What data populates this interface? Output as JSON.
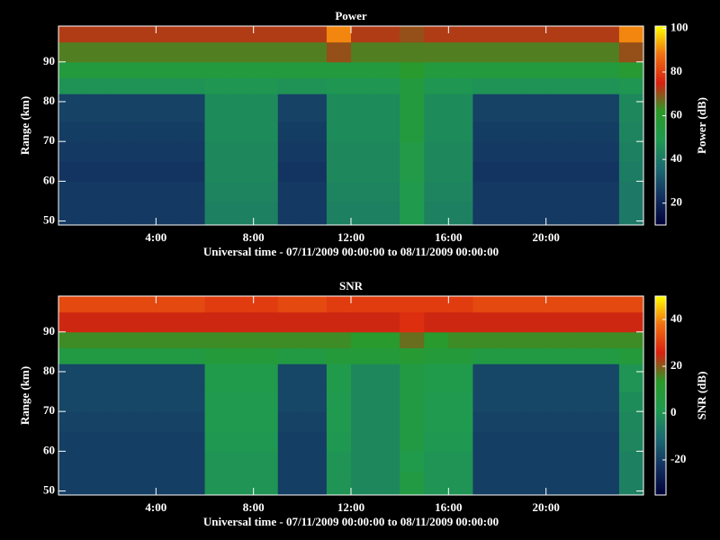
{
  "chart_data": [
    {
      "type": "heatmap",
      "title": "Power",
      "xlabel": "Universal time - 07/11/2009 00:00:00 to 08/11/2009 00:00:00",
      "ylabel": "Range (km)",
      "colorbar_label": "Power (dB)",
      "x_bins": [
        0,
        1,
        2,
        3,
        4,
        5,
        6,
        7,
        8,
        9,
        10,
        11,
        12,
        13,
        14,
        15,
        16,
        17,
        18,
        19,
        20,
        21,
        22,
        23,
        24
      ],
      "y_bins": [
        49,
        55,
        60,
        65,
        70,
        75,
        82,
        86,
        90,
        95,
        99
      ],
      "values": [
        [
          25,
          25,
          25,
          25,
          25,
          25,
          42,
          42,
          42,
          25,
          25,
          42,
          42,
          42,
          50,
          42,
          42,
          25,
          25,
          25,
          25,
          25,
          25,
          40
        ],
        [
          25,
          25,
          25,
          25,
          25,
          25,
          43,
          43,
          43,
          25,
          25,
          43,
          43,
          43,
          50,
          43,
          43,
          25,
          25,
          25,
          25,
          25,
          25,
          40
        ],
        [
          24,
          24,
          24,
          24,
          24,
          24,
          44,
          44,
          44,
          24,
          24,
          44,
          44,
          44,
          52,
          44,
          44,
          24,
          24,
          24,
          24,
          24,
          24,
          41
        ],
        [
          25,
          25,
          25,
          25,
          25,
          25,
          44,
          44,
          44,
          25,
          25,
          44,
          44,
          44,
          52,
          44,
          44,
          25,
          25,
          25,
          25,
          25,
          25,
          42
        ],
        [
          26,
          26,
          26,
          26,
          26,
          26,
          45,
          45,
          45,
          26,
          26,
          45,
          45,
          45,
          55,
          45,
          45,
          26,
          26,
          26,
          26,
          26,
          26,
          43
        ],
        [
          27,
          27,
          27,
          27,
          27,
          27,
          45,
          45,
          45,
          27,
          27,
          45,
          45,
          45,
          55,
          45,
          45,
          27,
          27,
          27,
          27,
          27,
          27,
          44
        ],
        [
          47,
          47,
          47,
          47,
          47,
          47,
          48,
          48,
          48,
          47,
          47,
          48,
          48,
          48,
          55,
          48,
          48,
          47,
          47,
          47,
          47,
          47,
          47,
          48
        ],
        [
          55,
          55,
          55,
          55,
          55,
          55,
          55,
          55,
          55,
          55,
          55,
          55,
          55,
          55,
          60,
          55,
          55,
          55,
          55,
          55,
          55,
          55,
          55,
          58
        ],
        [
          65,
          65,
          65,
          65,
          65,
          65,
          65,
          65,
          65,
          65,
          65,
          70,
          65,
          65,
          65,
          65,
          65,
          65,
          65,
          65,
          65,
          65,
          65,
          70
        ],
        [
          72,
          72,
          72,
          72,
          72,
          72,
          72,
          72,
          72,
          72,
          72,
          90,
          72,
          72,
          70,
          72,
          72,
          72,
          72,
          72,
          72,
          72,
          72,
          90
        ]
      ],
      "xlim": [
        0,
        24
      ],
      "ylim": [
        49,
        99
      ],
      "xticks": [
        {
          "value": 4,
          "label": "4:00"
        },
        {
          "value": 8,
          "label": "8:00"
        },
        {
          "value": 12,
          "label": "12:00"
        },
        {
          "value": 16,
          "label": "16:00"
        },
        {
          "value": 20,
          "label": "20:00"
        }
      ],
      "yticks": [
        50,
        60,
        70,
        80,
        90
      ],
      "zlim": [
        10,
        101
      ],
      "zticks": [
        20,
        40,
        60,
        80,
        100
      ],
      "colormap": [
        "#000038",
        "#123060",
        "#1c6a70",
        "#1f9a50",
        "#2a9a28",
        "#d82010",
        "#f07010",
        "#ffff00"
      ]
    },
    {
      "type": "heatmap",
      "title": "SNR",
      "xlabel": "Universal time - 07/11/2009 00:00:00 to 08/11/2009 00:00:00",
      "ylabel": "Range (km)",
      "colorbar_label": "SNR (dB)",
      "x_bins": [
        0,
        1,
        2,
        3,
        4,
        5,
        6,
        7,
        8,
        9,
        10,
        11,
        12,
        13,
        14,
        15,
        16,
        17,
        18,
        19,
        20,
        21,
        22,
        23,
        24
      ],
      "y_bins": [
        49,
        55,
        60,
        65,
        70,
        75,
        82,
        86,
        90,
        95,
        99
      ],
      "values": [
        [
          -20,
          -20,
          -20,
          -20,
          -20,
          -20,
          0,
          0,
          0,
          -20,
          -20,
          0,
          -3,
          -3,
          5,
          0,
          0,
          -20,
          -20,
          -20,
          -20,
          -20,
          -20,
          -5
        ],
        [
          -20,
          -20,
          -20,
          -20,
          -20,
          -20,
          0,
          0,
          0,
          -20,
          -20,
          0,
          -3,
          -3,
          3,
          0,
          0,
          -20,
          -20,
          -20,
          -20,
          -20,
          -20,
          -5
        ],
        [
          -20,
          -20,
          -20,
          -20,
          -20,
          -20,
          1,
          1,
          1,
          -20,
          -20,
          1,
          -3,
          -3,
          5,
          1,
          1,
          -20,
          -20,
          -20,
          -20,
          -20,
          -20,
          -4
        ],
        [
          -19,
          -19,
          -19,
          -19,
          -19,
          -19,
          2,
          2,
          2,
          -19,
          -19,
          2,
          -3,
          -3,
          5,
          2,
          2,
          -19,
          -19,
          -19,
          -19,
          -19,
          -19,
          -3
        ],
        [
          -18,
          -18,
          -18,
          -18,
          -18,
          -18,
          2,
          2,
          2,
          -18,
          -18,
          2,
          -3,
          -3,
          5,
          2,
          2,
          -18,
          -18,
          -18,
          -18,
          -18,
          -18,
          -2
        ],
        [
          -18,
          -18,
          -18,
          -18,
          -18,
          -18,
          3,
          3,
          3,
          -18,
          -18,
          3,
          -3,
          -3,
          5,
          3,
          3,
          -18,
          -18,
          -18,
          -18,
          -18,
          -18,
          0
        ],
        [
          5,
          5,
          5,
          5,
          5,
          5,
          8,
          8,
          8,
          5,
          5,
          8,
          8,
          8,
          10,
          8,
          8,
          5,
          5,
          5,
          5,
          5,
          5,
          8
        ],
        [
          15,
          15,
          15,
          15,
          15,
          15,
          15,
          15,
          15,
          15,
          15,
          15,
          12,
          12,
          18,
          12,
          15,
          15,
          15,
          15,
          15,
          15,
          15,
          15
        ],
        [
          25,
          25,
          25,
          25,
          25,
          25,
          25,
          25,
          25,
          25,
          25,
          25,
          25,
          25,
          28,
          25,
          25,
          25,
          25,
          25,
          25,
          25,
          25,
          25
        ],
        [
          32,
          32,
          32,
          32,
          32,
          32,
          30,
          30,
          30,
          32,
          32,
          30,
          30,
          30,
          30,
          30,
          30,
          32,
          32,
          32,
          32,
          32,
          32,
          32
        ]
      ],
      "xlim": [
        0,
        24
      ],
      "ylim": [
        49,
        99
      ],
      "xticks": [
        {
          "value": 4,
          "label": "4:00"
        },
        {
          "value": 8,
          "label": "8:00"
        },
        {
          "value": 12,
          "label": "12:00"
        },
        {
          "value": 16,
          "label": "16:00"
        },
        {
          "value": 20,
          "label": "20:00"
        }
      ],
      "yticks": [
        50,
        60,
        70,
        80,
        90
      ],
      "zlim": [
        -35,
        50
      ],
      "zticks": [
        -20,
        0,
        20,
        40
      ],
      "colormap": [
        "#000038",
        "#123060",
        "#1c6a70",
        "#1f9a50",
        "#2a9a28",
        "#d82010",
        "#f07010",
        "#ffff00"
      ]
    }
  ]
}
